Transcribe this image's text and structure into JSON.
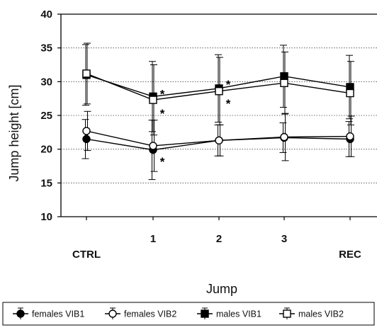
{
  "chart_data": {
    "type": "line",
    "xlabel": "Jump",
    "ylabel": "Jump height [cm]",
    "categories": [
      "CTRL",
      "1",
      "2",
      "3",
      "REC"
    ],
    "ylim": [
      10,
      40
    ],
    "yticks": [
      10,
      15,
      20,
      25,
      30,
      35,
      40
    ],
    "grid": "horizontal dotted",
    "legend_position": "bottom",
    "series": [
      {
        "name": "females VIB1",
        "marker": "filled-circle",
        "values": [
          21.5,
          19.9,
          21.3,
          21.7,
          21.5
        ],
        "error": [
          2.9,
          4.4,
          2.3,
          2.2,
          2.6
        ]
      },
      {
        "name": "females VIB2",
        "marker": "open-circle",
        "values": [
          22.7,
          20.5,
          21.3,
          21.8,
          21.9
        ],
        "error": [
          2.9,
          3.8,
          2.3,
          3.5,
          3.0
        ]
      },
      {
        "name": "males VIB1",
        "marker": "filled-square",
        "values": [
          31.0,
          27.8,
          29.0,
          30.8,
          29.2
        ],
        "error": [
          4.5,
          5.2,
          5.0,
          4.6,
          4.7
        ]
      },
      {
        "name": "males VIB2",
        "marker": "open-square",
        "values": [
          31.2,
          27.3,
          28.6,
          29.8,
          28.3
        ],
        "error": [
          4.5,
          5.2,
          5.0,
          4.6,
          4.7
        ]
      }
    ],
    "annotations": [
      {
        "text": "*",
        "x": "1",
        "y": 28.2
      },
      {
        "text": "*",
        "x": "1",
        "y": 25.3
      },
      {
        "text": "*",
        "x": "1",
        "y": 18.2
      },
      {
        "text": "*",
        "x": "2",
        "y": 29.6
      },
      {
        "text": "*",
        "x": "2",
        "y": 26.8
      }
    ]
  }
}
